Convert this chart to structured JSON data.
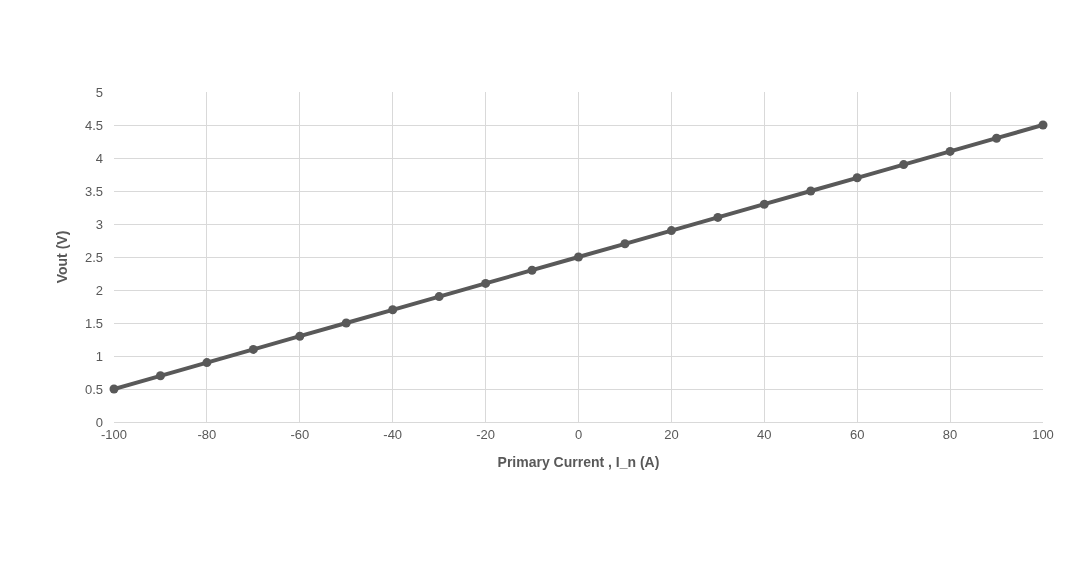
{
  "chart_data": {
    "type": "line",
    "xlabel": "Primary Current , I_n (A)",
    "ylabel": "Vout (V)",
    "x": [
      -100,
      -90,
      -80,
      -70,
      -60,
      -50,
      -40,
      -30,
      -20,
      -10,
      0,
      10,
      20,
      30,
      40,
      50,
      60,
      70,
      80,
      90,
      100
    ],
    "series": [
      {
        "color": "#595959",
        "values": [
          0.5,
          0.7,
          0.9,
          1.1,
          1.3,
          1.5,
          1.7,
          1.9,
          2.1,
          2.3,
          2.5,
          2.7,
          2.9,
          3.1,
          3.3,
          3.5,
          3.7,
          3.9,
          4.1,
          4.3,
          4.5
        ]
      }
    ],
    "xlim": [
      -100,
      100
    ],
    "xticks": [
      -100,
      -80,
      -60,
      -40,
      -20,
      0,
      20,
      40,
      60,
      80,
      100
    ],
    "ylim": [
      0,
      5
    ],
    "yticks": [
      0,
      0.5,
      1,
      1.5,
      2,
      2.5,
      3,
      3.5,
      4,
      4.5,
      5
    ],
    "grid": true,
    "marker": "circle",
    "line_style": "solid"
  }
}
